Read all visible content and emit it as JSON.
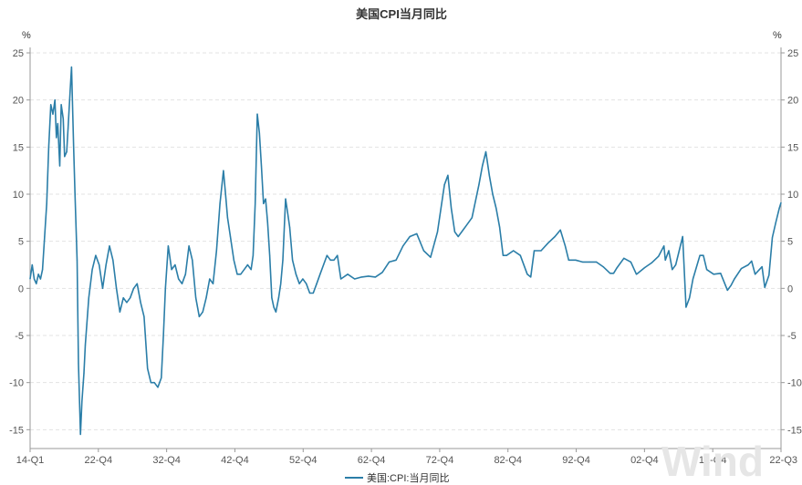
{
  "chart_data": {
    "type": "line",
    "title": "美国CPI当月同比",
    "y_unit_left": "%",
    "y_unit_right": "%",
    "ylim": [
      -17,
      25
    ],
    "y_ticks": [
      25,
      20,
      15,
      10,
      5,
      0,
      -5,
      -10,
      -15
    ],
    "x_ticks": [
      "14-Q1",
      "22-Q4",
      "32-Q4",
      "42-Q4",
      "52-Q4",
      "62-Q4",
      "72-Q4",
      "82-Q4",
      "92-Q4",
      "02-Q4",
      "12-Q4",
      "22-Q3"
    ],
    "grid": true,
    "legend_position": "bottom-center",
    "watermark": "Wind",
    "series": [
      {
        "name": "美国:CPI:当月同比",
        "color": "#2b7ea8",
        "x": [
          1914.0,
          1914.3,
          1914.6,
          1914.9,
          1915.2,
          1915.5,
          1915.8,
          1916.1,
          1916.4,
          1916.7,
          1917.0,
          1917.3,
          1917.6,
          1917.8,
          1918.0,
          1918.3,
          1918.5,
          1918.8,
          1919.0,
          1919.3,
          1919.5,
          1919.8,
          1920.0,
          1920.3,
          1920.5,
          1920.8,
          1921.0,
          1921.3,
          1921.5,
          1921.8,
          1922.0,
          1922.5,
          1923.0,
          1923.5,
          1924.0,
          1924.5,
          1925.0,
          1925.5,
          1926.0,
          1926.5,
          1927.0,
          1927.5,
          1928.0,
          1928.5,
          1929.0,
          1929.5,
          1930.0,
          1930.5,
          1931.0,
          1931.5,
          1932.0,
          1932.5,
          1933.0,
          1933.3,
          1933.6,
          1934.0,
          1934.5,
          1935.0,
          1935.5,
          1936.0,
          1936.5,
          1937.0,
          1937.5,
          1938.0,
          1938.5,
          1939.0,
          1939.5,
          1940.0,
          1940.5,
          1941.0,
          1941.5,
          1942.0,
          1942.3,
          1942.6,
          1943.0,
          1943.5,
          1944.0,
          1944.5,
          1945.0,
          1945.5,
          1946.0,
          1946.3,
          1946.6,
          1946.9,
          1947.2,
          1947.5,
          1947.8,
          1948.1,
          1948.4,
          1948.7,
          1949.0,
          1949.3,
          1949.6,
          1950.0,
          1950.3,
          1950.6,
          1951.0,
          1951.3,
          1951.6,
          1952.0,
          1952.5,
          1953.0,
          1953.5,
          1954.0,
          1954.5,
          1955.0,
          1955.5,
          1956.0,
          1956.5,
          1957.0,
          1957.5,
          1958.0,
          1958.5,
          1959.0,
          1960.0,
          1961.0,
          1962.0,
          1963.0,
          1964.0,
          1965.0,
          1966.0,
          1967.0,
          1968.0,
          1969.0,
          1970.0,
          1971.0,
          1972.0,
          1973.0,
          1973.5,
          1974.0,
          1974.5,
          1975.0,
          1975.5,
          1976.0,
          1977.0,
          1978.0,
          1979.0,
          1979.5,
          1980.0,
          1980.5,
          1981.0,
          1981.5,
          1982.0,
          1982.5,
          1983.0,
          1984.0,
          1985.0,
          1986.0,
          1986.5,
          1987.0,
          1988.0,
          1989.0,
          1990.0,
          1990.8,
          1991.5,
          1992.0,
          1993.0,
          1994.0,
          1995.0,
          1996.0,
          1997.0,
          1998.0,
          1998.5,
          1999.0,
          2000.0,
          2001.0,
          2001.8,
          2002.0,
          2003.0,
          2004.0,
          2005.0,
          2005.8,
          2006.0,
          2006.5,
          2007.0,
          2007.5,
          2008.0,
          2008.5,
          2009.0,
          2009.5,
          2010.0,
          2011.0,
          2011.5,
          2012.0,
          2013.0,
          2014.0,
          2015.0,
          2015.5,
          2016.0,
          2017.0,
          2018.0,
          2018.5,
          2019.0,
          2020.0,
          2020.4,
          2021.0,
          2021.5,
          2022.0,
          2022.5,
          2022.75
        ],
        "values": [
          1.0,
          2.5,
          1.0,
          0.5,
          1.5,
          1.0,
          2.0,
          5.5,
          9.0,
          15.0,
          19.5,
          18.5,
          20.0,
          16.0,
          17.5,
          13.0,
          19.5,
          18.0,
          14.0,
          14.5,
          17.0,
          21.0,
          23.5,
          15.0,
          10.0,
          3.0,
          -8.0,
          -15.5,
          -12.0,
          -9.0,
          -6.0,
          -1.0,
          2.0,
          3.5,
          2.5,
          0.0,
          2.5,
          4.5,
          3.0,
          0.0,
          -2.5,
          -1.0,
          -1.5,
          -1.0,
          0.0,
          0.5,
          -1.5,
          -3.0,
          -8.5,
          -10.0,
          -10.0,
          -10.5,
          -9.5,
          -5.0,
          0.0,
          4.5,
          2.0,
          2.5,
          1.0,
          0.5,
          1.5,
          4.5,
          3.0,
          -1.0,
          -3.0,
          -2.5,
          -1.0,
          1.0,
          0.5,
          4.0,
          9.0,
          12.5,
          10.0,
          7.5,
          5.5,
          3.0,
          1.5,
          1.5,
          2.0,
          2.5,
          2.0,
          3.5,
          9.0,
          18.5,
          16.5,
          13.0,
          9.0,
          9.5,
          7.0,
          3.5,
          -1.0,
          -2.0,
          -2.5,
          -1.0,
          0.5,
          3.0,
          9.5,
          8.0,
          6.5,
          3.0,
          1.5,
          0.5,
          1.0,
          0.5,
          -0.5,
          -0.5,
          0.5,
          1.5,
          2.5,
          3.5,
          3.0,
          3.0,
          3.5,
          1.0,
          1.5,
          1.0,
          1.2,
          1.3,
          1.2,
          1.7,
          2.8,
          3.0,
          4.5,
          5.5,
          5.8,
          4.0,
          3.3,
          6.0,
          8.5,
          11.0,
          12.0,
          8.5,
          6.0,
          5.5,
          6.5,
          7.5,
          11.0,
          13.0,
          14.5,
          12.0,
          10.0,
          8.5,
          6.5,
          3.5,
          3.5,
          4.0,
          3.5,
          1.5,
          1.2,
          4.0,
          4.0,
          4.8,
          5.5,
          6.2,
          4.5,
          3.0,
          3.0,
          2.8,
          2.8,
          2.8,
          2.3,
          1.6,
          1.6,
          2.2,
          3.2,
          2.8,
          1.5,
          1.6,
          2.2,
          2.7,
          3.4,
          4.5,
          3.0,
          4.0,
          2.0,
          2.5,
          4.0,
          5.5,
          -2.0,
          -1.0,
          1.0,
          3.5,
          3.5,
          2.0,
          1.5,
          1.6,
          -0.2,
          0.3,
          1.0,
          2.1,
          2.5,
          2.9,
          1.5,
          2.3,
          0.1,
          1.4,
          5.4,
          7.0,
          8.5,
          9.1
        ]
      }
    ]
  }
}
